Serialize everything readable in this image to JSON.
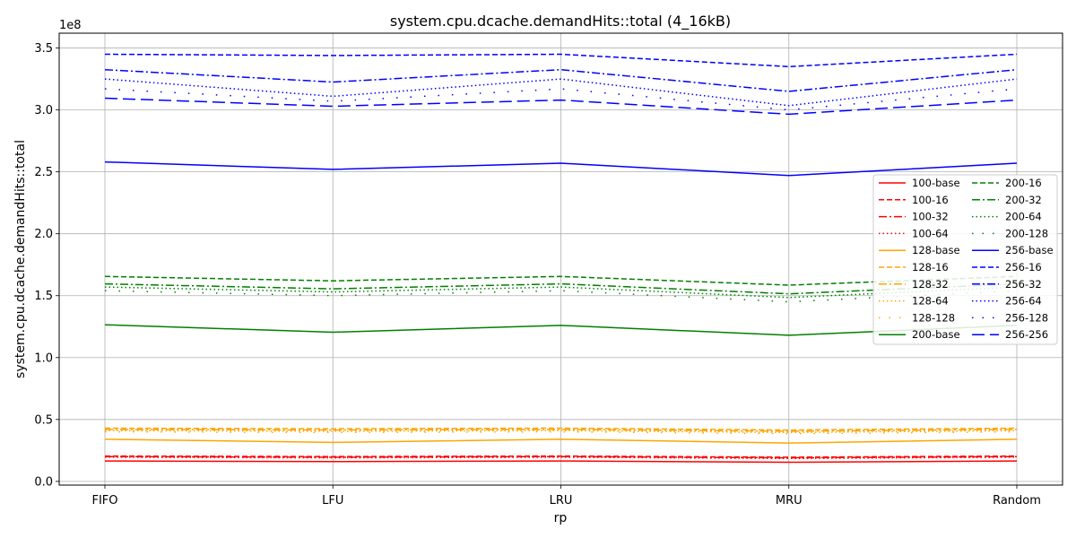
{
  "chart_data": {
    "type": "line",
    "title": "system.cpu.dcache.demandHits::total (4_16kB)",
    "xlabel": "rp",
    "ylabel": "system.cpu.dcache.demandHits::total",
    "y_multiplier": "1e8",
    "categories": [
      "FIFO",
      "LFU",
      "LRU",
      "MRU",
      "Random"
    ],
    "ylim": [
      -3000000.0,
      362000000.0
    ],
    "y_ticks": [
      0,
      50000000.0,
      100000000.0,
      150000000.0,
      200000000.0,
      250000000.0,
      300000000.0,
      350000000.0
    ],
    "y_tick_labels": [
      "0.0",
      "0.5",
      "1.0",
      "1.5",
      "2.0",
      "2.5",
      "3.0",
      "3.5"
    ],
    "grid": true,
    "legend_placement": "center-right",
    "series": [
      {
        "name": "100-base",
        "color": "#ff0000",
        "dash": "solid",
        "values": [
          16500000,
          16000000,
          16500000,
          15500000,
          16500000
        ]
      },
      {
        "name": "100-16",
        "color": "#ff0000",
        "dash": "dashed",
        "values": [
          20500000,
          20000000,
          20500000,
          19500000,
          20500000
        ]
      },
      {
        "name": "100-32",
        "color": "#ff0000",
        "dash": "dashdot",
        "values": [
          20000000,
          19500000,
          20000000,
          19000000,
          20000000
        ]
      },
      {
        "name": "100-64",
        "color": "#ff0000",
        "dash": "dotted",
        "values": [
          19500000,
          19000000,
          19500000,
          18500000,
          19500000
        ]
      },
      {
        "name": "128-base",
        "color": "#ffa500",
        "dash": "solid",
        "values": [
          34000000,
          31500000,
          34000000,
          31000000,
          34000000
        ]
      },
      {
        "name": "128-16",
        "color": "#ffa500",
        "dash": "dashed",
        "values": [
          43000000,
          42500000,
          43000000,
          41500000,
          43000000
        ]
      },
      {
        "name": "128-32",
        "color": "#ffa500",
        "dash": "dashdot",
        "values": [
          42000000,
          41500000,
          42000000,
          40500000,
          42000000
        ]
      },
      {
        "name": "128-64",
        "color": "#ffa500",
        "dash": "dotted",
        "values": [
          41000000,
          40500000,
          41000000,
          39500000,
          41000000
        ]
      },
      {
        "name": "128-128",
        "color": "#ffa500",
        "dash": "sparse",
        "values": [
          40000000,
          39500000,
          40000000,
          38500000,
          40000000
        ]
      },
      {
        "name": "200-base",
        "color": "#008000",
        "dash": "solid",
        "values": [
          126500000,
          120500000,
          126000000,
          118000000,
          126000000
        ]
      },
      {
        "name": "200-16",
        "color": "#008000",
        "dash": "dashed",
        "values": [
          165500000,
          162000000,
          165500000,
          158500000,
          165500000
        ]
      },
      {
        "name": "200-32",
        "color": "#008000",
        "dash": "dashdot",
        "values": [
          159500000,
          155500000,
          159500000,
          151500000,
          159500000
        ]
      },
      {
        "name": "200-64",
        "color": "#008000",
        "dash": "dotted",
        "values": [
          157000000,
          153000000,
          157000000,
          148500000,
          157000000
        ]
      },
      {
        "name": "200-128",
        "color": "#008000",
        "dash": "sparse",
        "values": [
          154000000,
          150000000,
          154000000,
          145000000,
          154000000
        ]
      },
      {
        "name": "256-base",
        "color": "#0000ff",
        "dash": "solid",
        "values": [
          258000000,
          252000000,
          257000000,
          247000000,
          257000000
        ]
      },
      {
        "name": "256-16",
        "color": "#0000ff",
        "dash": "dashed",
        "values": [
          345000000,
          344000000,
          345000000,
          335000000,
          345000000
        ]
      },
      {
        "name": "256-32",
        "color": "#0000ff",
        "dash": "dashdot",
        "values": [
          332500000,
          322500000,
          332500000,
          315000000,
          332500000
        ]
      },
      {
        "name": "256-64",
        "color": "#0000ff",
        "dash": "dotted",
        "values": [
          325000000,
          311000000,
          325000000,
          303500000,
          325000000
        ]
      },
      {
        "name": "256-128",
        "color": "#0000ff",
        "dash": "sparse",
        "values": [
          317000000,
          307000000,
          317000000,
          300000000,
          317000000
        ]
      },
      {
        "name": "256-256",
        "color": "#0000ff",
        "dash": "longdash",
        "values": [
          309500000,
          303000000,
          308000000,
          296500000,
          308000000
        ]
      }
    ]
  }
}
